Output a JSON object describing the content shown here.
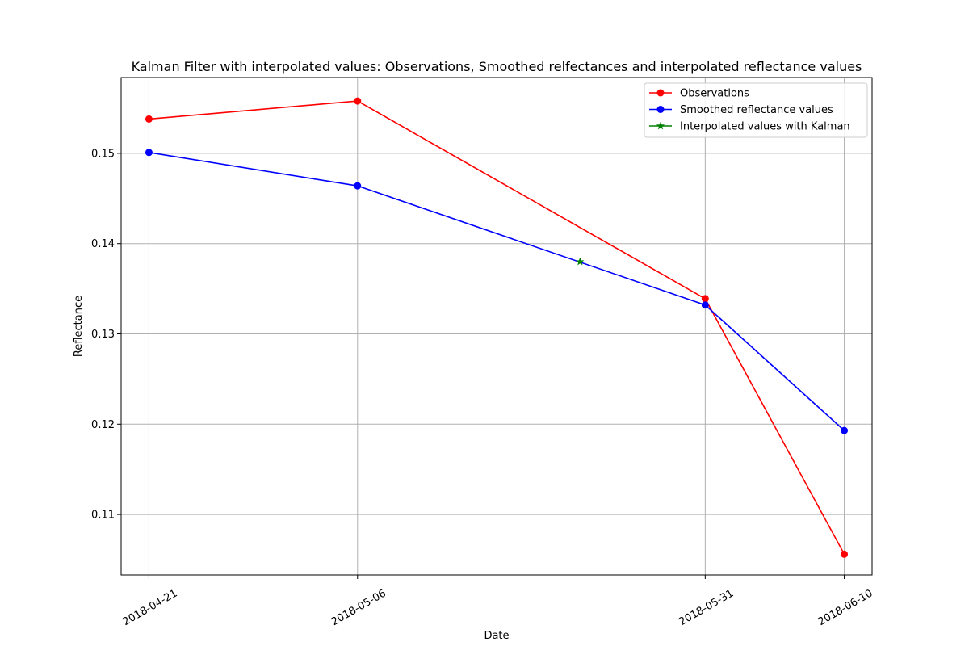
{
  "chart_data": {
    "type": "line",
    "title": "Kalman Filter with interpolated values: Observations, Smoothed relfectances  and interpolated  reflectance values",
    "xlabel": "Date",
    "ylabel": "Reflectance",
    "x_ticks": [
      "2018-04-21",
      "2018-05-06",
      "2018-05-31",
      "2018-06-10"
    ],
    "y_ticks": [
      "0.11",
      "0.12",
      "0.13",
      "0.14",
      "0.15"
    ],
    "xlim": [
      "2018-04-19",
      "2018-06-12"
    ],
    "ylim": [
      0.1033,
      0.1584
    ],
    "grid": true,
    "legend_position": "upper right",
    "series": [
      {
        "name": "Observations",
        "color": "#ff0000",
        "marker": "circle",
        "points": [
          {
            "x": "2018-04-21",
            "y": 0.1538
          },
          {
            "x": "2018-05-06",
            "y": 0.1558
          },
          {
            "x": "2018-05-31",
            "y": 0.1339
          },
          {
            "x": "2018-06-10",
            "y": 0.1056
          }
        ]
      },
      {
        "name": "Smoothed reflectance values",
        "color": "#0000ff",
        "marker": "circle",
        "points": [
          {
            "x": "2018-04-21",
            "y": 0.1501
          },
          {
            "x": "2018-05-06",
            "y": 0.1464
          },
          {
            "x": "2018-05-31",
            "y": 0.1332
          },
          {
            "x": "2018-06-10",
            "y": 0.1193
          }
        ]
      },
      {
        "name": "Interpolated values with Kalman",
        "color": "#008000",
        "marker": "star",
        "points": [
          {
            "x": "2018-05-22",
            "y": 0.138
          }
        ]
      }
    ]
  }
}
